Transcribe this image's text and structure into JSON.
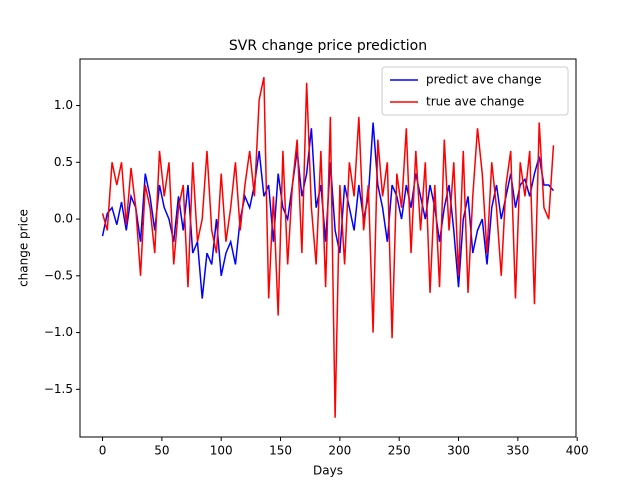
{
  "chart_data": {
    "type": "line",
    "title": "SVR change price prediction",
    "xlabel": "Days",
    "ylabel": "change price",
    "x": [
      0,
      4,
      8,
      12,
      16,
      20,
      24,
      28,
      32,
      36,
      40,
      44,
      48,
      52,
      56,
      60,
      64,
      68,
      72,
      76,
      80,
      84,
      88,
      92,
      96,
      100,
      104,
      108,
      112,
      116,
      120,
      124,
      128,
      132,
      136,
      140,
      144,
      148,
      152,
      156,
      160,
      164,
      168,
      172,
      176,
      180,
      184,
      188,
      192,
      196,
      200,
      204,
      208,
      212,
      216,
      220,
      224,
      228,
      232,
      236,
      240,
      244,
      248,
      252,
      256,
      260,
      264,
      268,
      272,
      276,
      280,
      284,
      288,
      292,
      296,
      300,
      304,
      308,
      312,
      316,
      320,
      324,
      328,
      332,
      336,
      340,
      344,
      348,
      352,
      356,
      360,
      364,
      368,
      372,
      376,
      380
    ],
    "series": [
      {
        "name": "predict ave change",
        "color": "#0000ff",
        "values": [
          -0.15,
          0.05,
          0.1,
          -0.05,
          0.15,
          -0.1,
          0.2,
          0.1,
          -0.2,
          0.4,
          0.2,
          -0.1,
          0.3,
          0.1,
          0.0,
          -0.2,
          0.2,
          -0.1,
          0.3,
          -0.3,
          -0.2,
          -0.7,
          -0.3,
          -0.4,
          0.0,
          -0.5,
          -0.3,
          -0.2,
          -0.4,
          0.0,
          0.2,
          0.1,
          0.3,
          0.6,
          0.2,
          0.3,
          -0.2,
          0.4,
          0.1,
          0.0,
          0.3,
          0.6,
          0.2,
          0.4,
          0.8,
          0.1,
          0.3,
          -0.2,
          0.5,
          -0.1,
          -0.3,
          0.3,
          0.1,
          -0.1,
          0.3,
          0.0,
          0.2,
          0.85,
          0.3,
          0.1,
          -0.2,
          0.3,
          0.2,
          0.0,
          0.3,
          0.1,
          0.4,
          0.2,
          0.0,
          0.3,
          0.1,
          -0.2,
          0.1,
          0.3,
          -0.1,
          -0.6,
          0.0,
          0.2,
          -0.3,
          -0.1,
          0.0,
          -0.4,
          0.1,
          0.3,
          0.0,
          0.2,
          0.4,
          0.1,
          0.3,
          0.35,
          0.2,
          0.4,
          0.55,
          0.3,
          0.3,
          0.25
        ]
      },
      {
        "name": "true ave change",
        "color": "#ff0000",
        "values": [
          0.05,
          -0.1,
          0.5,
          0.3,
          0.5,
          -0.05,
          0.45,
          0.1,
          -0.5,
          0.3,
          0.1,
          -0.3,
          0.6,
          0.2,
          0.5,
          -0.4,
          0.1,
          0.3,
          -0.6,
          0.5,
          -0.2,
          0.0,
          0.6,
          -0.1,
          -0.3,
          0.4,
          -0.2,
          0.1,
          0.5,
          -0.1,
          0.3,
          0.6,
          0.2,
          1.05,
          1.25,
          -0.7,
          0.2,
          -0.85,
          0.6,
          -0.4,
          0.3,
          0.7,
          -0.3,
          1.2,
          0.1,
          -0.4,
          0.6,
          -0.6,
          0.9,
          -1.75,
          0.3,
          -0.4,
          0.5,
          0.2,
          0.9,
          -0.1,
          0.3,
          -1.0,
          0.7,
          0.2,
          0.5,
          -1.05,
          0.4,
          0.1,
          0.8,
          -0.3,
          0.6,
          -0.1,
          0.5,
          -0.65,
          0.3,
          -0.6,
          0.7,
          -0.1,
          0.5,
          -0.5,
          0.6,
          -0.65,
          0.2,
          0.8,
          0.4,
          -0.3,
          0.5,
          0.1,
          -0.5,
          0.3,
          0.6,
          -0.7,
          0.5,
          0.2,
          0.6,
          -0.75,
          0.85,
          0.1,
          0.0,
          0.65
        ]
      }
    ],
    "xlim": [
      -19,
      399
    ],
    "ylim": [
      -1.92,
      1.41
    ],
    "xticks": [
      0,
      50,
      100,
      150,
      200,
      250,
      300,
      350,
      400
    ],
    "yticks": [
      {
        "value": -1.5,
        "label": "−1.5"
      },
      {
        "value": -1.0,
        "label": "−1.0"
      },
      {
        "value": -0.5,
        "label": "−0.5"
      },
      {
        "value": 0.0,
        "label": "0.0"
      },
      0.5,
      {
        "value": 1.0,
        "label": "1.0"
      }
    ],
    "legend": "upper right"
  }
}
